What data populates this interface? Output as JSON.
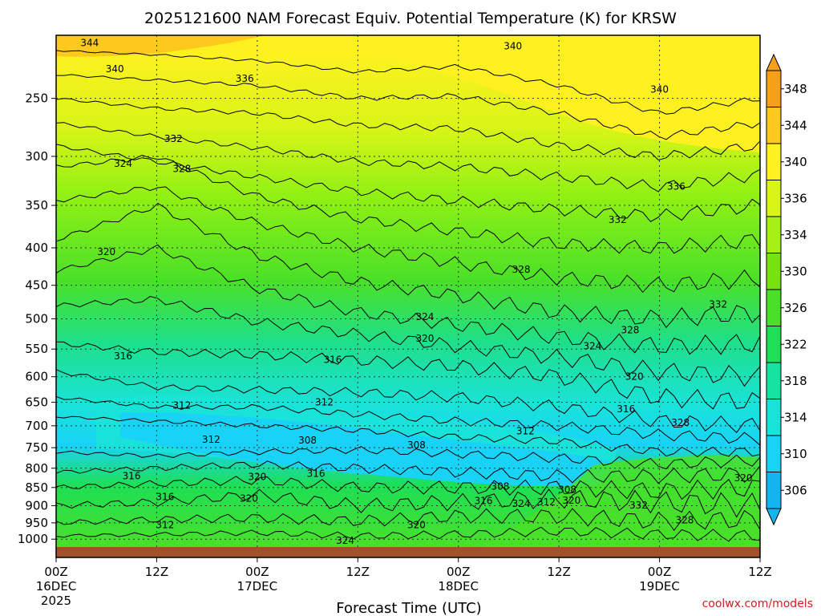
{
  "chart_data": {
    "type": "heatmap",
    "title": "2025121600 NAM Forecast Equiv. Potential Temperature (K) for KRSW",
    "xlabel": "Forecast Time (UTC)",
    "ylabel": "",
    "x_ticks": [
      {
        "hour": 0,
        "line1": "00Z",
        "line2": "16DEC",
        "line3": "2025"
      },
      {
        "hour": 12,
        "line1": "12Z",
        "line2": "",
        "line3": ""
      },
      {
        "hour": 24,
        "line1": "00Z",
        "line2": "17DEC",
        "line3": ""
      },
      {
        "hour": 36,
        "line1": "12Z",
        "line2": "",
        "line3": ""
      },
      {
        "hour": 48,
        "line1": "00Z",
        "line2": "18DEC",
        "line3": ""
      },
      {
        "hour": 60,
        "line1": "12Z",
        "line2": "",
        "line3": ""
      },
      {
        "hour": 72,
        "line1": "00Z",
        "line2": "19DEC",
        "line3": ""
      },
      {
        "hour": 84,
        "line1": "12Z",
        "line2": "",
        "line3": ""
      }
    ],
    "xlim": [
      0,
      84
    ],
    "y_ticks": [
      250,
      300,
      350,
      400,
      450,
      500,
      550,
      600,
      650,
      700,
      750,
      800,
      850,
      900,
      950,
      1000
    ],
    "ylim_hPa": [
      200,
      1025
    ],
    "colorbar": {
      "label_values": [
        348,
        344,
        340,
        336,
        334,
        330,
        326,
        322,
        318,
        314,
        310,
        306
      ],
      "colors": [
        "#f6a01a",
        "#fcc91c",
        "#fff11f",
        "#d9f516",
        "#a6f013",
        "#78e210",
        "#4ae028",
        "#1edf55",
        "#15e3a0",
        "#19e3d8",
        "#19d3f7",
        "#13b5f0"
      ]
    },
    "contour_labels": [
      {
        "value": 344,
        "hour": 4.0,
        "hPa": 210
      },
      {
        "value": 340,
        "hour": 7.0,
        "hPa": 228
      },
      {
        "value": 336,
        "hour": 22.5,
        "hPa": 235
      },
      {
        "value": 340,
        "hour": 54.5,
        "hPa": 212
      },
      {
        "value": 340,
        "hour": 72.0,
        "hPa": 243
      },
      {
        "value": 332,
        "hour": 14.0,
        "hPa": 284
      },
      {
        "value": 328,
        "hour": 15.0,
        "hPa": 312
      },
      {
        "value": 324,
        "hour": 8.0,
        "hPa": 307
      },
      {
        "value": 336,
        "hour": 74.0,
        "hPa": 330
      },
      {
        "value": 332,
        "hour": 67.0,
        "hPa": 366
      },
      {
        "value": 328,
        "hour": 55.5,
        "hPa": 428
      },
      {
        "value": 320,
        "hour": 6.0,
        "hPa": 405
      },
      {
        "value": 332,
        "hour": 79.0,
        "hPa": 478
      },
      {
        "value": 324,
        "hour": 44.0,
        "hPa": 497
      },
      {
        "value": 328,
        "hour": 68.5,
        "hPa": 518
      },
      {
        "value": 320,
        "hour": 44.0,
        "hPa": 532
      },
      {
        "value": 324,
        "hour": 64.0,
        "hPa": 545
      },
      {
        "value": 316,
        "hour": 8.0,
        "hPa": 562
      },
      {
        "value": 316,
        "hour": 33.0,
        "hPa": 569
      },
      {
        "value": 320,
        "hour": 69.0,
        "hPa": 600
      },
      {
        "value": 312,
        "hour": 15.0,
        "hPa": 657
      },
      {
        "value": 312,
        "hour": 32.0,
        "hPa": 650
      },
      {
        "value": 316,
        "hour": 68.0,
        "hPa": 664
      },
      {
        "value": 328,
        "hour": 74.5,
        "hPa": 693
      },
      {
        "value": 312,
        "hour": 56.0,
        "hPa": 712
      },
      {
        "value": 312,
        "hour": 18.5,
        "hPa": 731
      },
      {
        "value": 308,
        "hour": 30.0,
        "hPa": 733
      },
      {
        "value": 308,
        "hour": 43.0,
        "hPa": 744
      },
      {
        "value": 320,
        "hour": 24.0,
        "hPa": 822
      },
      {
        "value": 316,
        "hour": 31.0,
        "hPa": 814
      },
      {
        "value": 316,
        "hour": 9.0,
        "hPa": 820
      },
      {
        "value": 320,
        "hour": 23.0,
        "hPa": 880
      },
      {
        "value": 316,
        "hour": 13.0,
        "hPa": 875
      },
      {
        "value": 308,
        "hour": 53.0,
        "hPa": 847
      },
      {
        "value": 308,
        "hour": 61.0,
        "hPa": 856
      },
      {
        "value": 316,
        "hour": 51.0,
        "hPa": 887
      },
      {
        "value": 324,
        "hour": 55.5,
        "hPa": 895
      },
      {
        "value": 312,
        "hour": 58.5,
        "hPa": 890
      },
      {
        "value": 320,
        "hour": 61.5,
        "hPa": 886
      },
      {
        "value": 332,
        "hour": 69.5,
        "hPa": 899
      },
      {
        "value": 320,
        "hour": 82.0,
        "hPa": 825
      },
      {
        "value": 328,
        "hour": 75.0,
        "hPa": 942
      },
      {
        "value": 312,
        "hour": 13.0,
        "hPa": 956
      },
      {
        "value": 320,
        "hour": 43.0,
        "hPa": 956
      },
      {
        "value": 324,
        "hour": 34.5,
        "hPa": 1005
      }
    ]
  },
  "credit": "coolwx.com/models",
  "colors": {
    "ground": "#a0522d",
    "credit": "#d02020"
  }
}
